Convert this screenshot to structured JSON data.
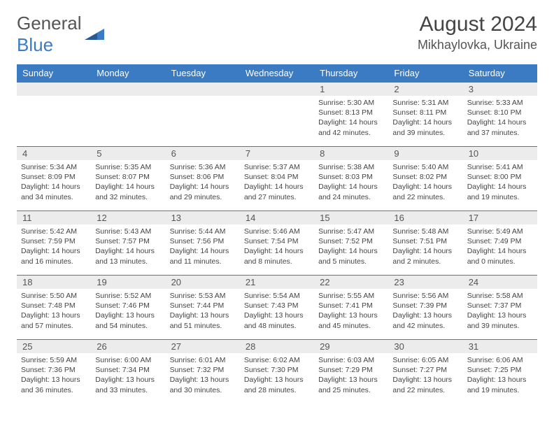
{
  "logo": {
    "text_general": "General",
    "text_blue": "Blue"
  },
  "header": {
    "month_title": "August 2024",
    "location": "Mikhaylovka, Ukraine"
  },
  "colors": {
    "brand_blue": "#3a7bc4",
    "header_bg": "#3a7bc4",
    "daynum_bg": "#ececec",
    "text": "#444444",
    "background": "#ffffff"
  },
  "day_headers": [
    "Sunday",
    "Monday",
    "Tuesday",
    "Wednesday",
    "Thursday",
    "Friday",
    "Saturday"
  ],
  "leading_blanks": 4,
  "days": [
    {
      "n": 1,
      "sunrise": "5:30 AM",
      "sunset": "8:13 PM",
      "daylight": "14 hours and 42 minutes."
    },
    {
      "n": 2,
      "sunrise": "5:31 AM",
      "sunset": "8:11 PM",
      "daylight": "14 hours and 39 minutes."
    },
    {
      "n": 3,
      "sunrise": "5:33 AM",
      "sunset": "8:10 PM",
      "daylight": "14 hours and 37 minutes."
    },
    {
      "n": 4,
      "sunrise": "5:34 AM",
      "sunset": "8:09 PM",
      "daylight": "14 hours and 34 minutes."
    },
    {
      "n": 5,
      "sunrise": "5:35 AM",
      "sunset": "8:07 PM",
      "daylight": "14 hours and 32 minutes."
    },
    {
      "n": 6,
      "sunrise": "5:36 AM",
      "sunset": "8:06 PM",
      "daylight": "14 hours and 29 minutes."
    },
    {
      "n": 7,
      "sunrise": "5:37 AM",
      "sunset": "8:04 PM",
      "daylight": "14 hours and 27 minutes."
    },
    {
      "n": 8,
      "sunrise": "5:38 AM",
      "sunset": "8:03 PM",
      "daylight": "14 hours and 24 minutes."
    },
    {
      "n": 9,
      "sunrise": "5:40 AM",
      "sunset": "8:02 PM",
      "daylight": "14 hours and 22 minutes."
    },
    {
      "n": 10,
      "sunrise": "5:41 AM",
      "sunset": "8:00 PM",
      "daylight": "14 hours and 19 minutes."
    },
    {
      "n": 11,
      "sunrise": "5:42 AM",
      "sunset": "7:59 PM",
      "daylight": "14 hours and 16 minutes."
    },
    {
      "n": 12,
      "sunrise": "5:43 AM",
      "sunset": "7:57 PM",
      "daylight": "14 hours and 13 minutes."
    },
    {
      "n": 13,
      "sunrise": "5:44 AM",
      "sunset": "7:56 PM",
      "daylight": "14 hours and 11 minutes."
    },
    {
      "n": 14,
      "sunrise": "5:46 AM",
      "sunset": "7:54 PM",
      "daylight": "14 hours and 8 minutes."
    },
    {
      "n": 15,
      "sunrise": "5:47 AM",
      "sunset": "7:52 PM",
      "daylight": "14 hours and 5 minutes."
    },
    {
      "n": 16,
      "sunrise": "5:48 AM",
      "sunset": "7:51 PM",
      "daylight": "14 hours and 2 minutes."
    },
    {
      "n": 17,
      "sunrise": "5:49 AM",
      "sunset": "7:49 PM",
      "daylight": "14 hours and 0 minutes."
    },
    {
      "n": 18,
      "sunrise": "5:50 AM",
      "sunset": "7:48 PM",
      "daylight": "13 hours and 57 minutes."
    },
    {
      "n": 19,
      "sunrise": "5:52 AM",
      "sunset": "7:46 PM",
      "daylight": "13 hours and 54 minutes."
    },
    {
      "n": 20,
      "sunrise": "5:53 AM",
      "sunset": "7:44 PM",
      "daylight": "13 hours and 51 minutes."
    },
    {
      "n": 21,
      "sunrise": "5:54 AM",
      "sunset": "7:43 PM",
      "daylight": "13 hours and 48 minutes."
    },
    {
      "n": 22,
      "sunrise": "5:55 AM",
      "sunset": "7:41 PM",
      "daylight": "13 hours and 45 minutes."
    },
    {
      "n": 23,
      "sunrise": "5:56 AM",
      "sunset": "7:39 PM",
      "daylight": "13 hours and 42 minutes."
    },
    {
      "n": 24,
      "sunrise": "5:58 AM",
      "sunset": "7:37 PM",
      "daylight": "13 hours and 39 minutes."
    },
    {
      "n": 25,
      "sunrise": "5:59 AM",
      "sunset": "7:36 PM",
      "daylight": "13 hours and 36 minutes."
    },
    {
      "n": 26,
      "sunrise": "6:00 AM",
      "sunset": "7:34 PM",
      "daylight": "13 hours and 33 minutes."
    },
    {
      "n": 27,
      "sunrise": "6:01 AM",
      "sunset": "7:32 PM",
      "daylight": "13 hours and 30 minutes."
    },
    {
      "n": 28,
      "sunrise": "6:02 AM",
      "sunset": "7:30 PM",
      "daylight": "13 hours and 28 minutes."
    },
    {
      "n": 29,
      "sunrise": "6:03 AM",
      "sunset": "7:29 PM",
      "daylight": "13 hours and 25 minutes."
    },
    {
      "n": 30,
      "sunrise": "6:05 AM",
      "sunset": "7:27 PM",
      "daylight": "13 hours and 22 minutes."
    },
    {
      "n": 31,
      "sunrise": "6:06 AM",
      "sunset": "7:25 PM",
      "daylight": "13 hours and 19 minutes."
    }
  ],
  "labels": {
    "sunrise_prefix": "Sunrise: ",
    "sunset_prefix": "Sunset: ",
    "daylight_prefix": "Daylight: "
  }
}
